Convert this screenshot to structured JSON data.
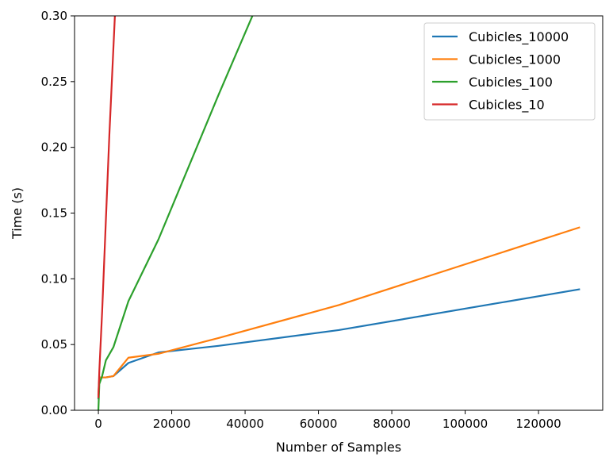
{
  "chart_data": {
    "type": "line",
    "title": "",
    "xlabel": "Number of Samples",
    "ylabel": "Time (s)",
    "xlim": [
      -6500,
      137500
    ],
    "ylim": [
      0,
      0.3
    ],
    "x_ticks": [
      {
        "value": 0,
        "label": "0"
      },
      {
        "value": 20000,
        "label": "20000"
      },
      {
        "value": 40000,
        "label": "40000"
      },
      {
        "value": 60000,
        "label": "60000"
      },
      {
        "value": 80000,
        "label": "80000"
      },
      {
        "value": 100000,
        "label": "100000"
      },
      {
        "value": 120000,
        "label": "120000"
      }
    ],
    "y_ticks": [
      {
        "value": 0,
        "label": "0.00"
      },
      {
        "value": 0.05,
        "label": "0.05"
      },
      {
        "value": 0.1,
        "label": "0.10"
      },
      {
        "value": 0.15,
        "label": "0.15"
      },
      {
        "value": 0.2,
        "label": "0.20"
      },
      {
        "value": 0.25,
        "label": "0.25"
      },
      {
        "value": 0.3,
        "label": "0.30"
      }
    ],
    "grid": false,
    "legend_position": "top-right",
    "series": [
      {
        "name": "Cubicles_10000",
        "color": "#1f77b4",
        "points": [
          [
            0,
            0.009
          ],
          [
            256,
            0.025
          ],
          [
            1024,
            0.025
          ],
          [
            2048,
            0.025
          ],
          [
            4096,
            0.026
          ],
          [
            8192,
            0.036
          ],
          [
            16384,
            0.044
          ],
          [
            32768,
            0.049
          ],
          [
            65536,
            0.061
          ],
          [
            131072,
            0.092
          ]
        ]
      },
      {
        "name": "Cubicles_1000",
        "color": "#ff7f0e",
        "points": [
          [
            0,
            0.012
          ],
          [
            256,
            0.025
          ],
          [
            1024,
            0.025
          ],
          [
            2048,
            0.025
          ],
          [
            4096,
            0.026
          ],
          [
            8192,
            0.04
          ],
          [
            16384,
            0.043
          ],
          [
            32768,
            0.055
          ],
          [
            65536,
            0.08
          ],
          [
            131072,
            0.139
          ]
        ]
      },
      {
        "name": "Cubicles_100",
        "color": "#2ca02c",
        "points": [
          [
            0,
            0.0
          ],
          [
            256,
            0.02
          ],
          [
            1024,
            0.026
          ],
          [
            2048,
            0.038
          ],
          [
            4096,
            0.048
          ],
          [
            8192,
            0.083
          ],
          [
            16384,
            0.13
          ],
          [
            32768,
            0.24
          ],
          [
            42000,
            0.3
          ]
        ]
      },
      {
        "name": "Cubicles_10",
        "color": "#d62728",
        "points": [
          [
            0,
            0.01
          ],
          [
            256,
            0.03
          ],
          [
            1024,
            0.075
          ],
          [
            2048,
            0.145
          ],
          [
            3000,
            0.21
          ],
          [
            4500,
            0.3
          ]
        ]
      }
    ]
  }
}
